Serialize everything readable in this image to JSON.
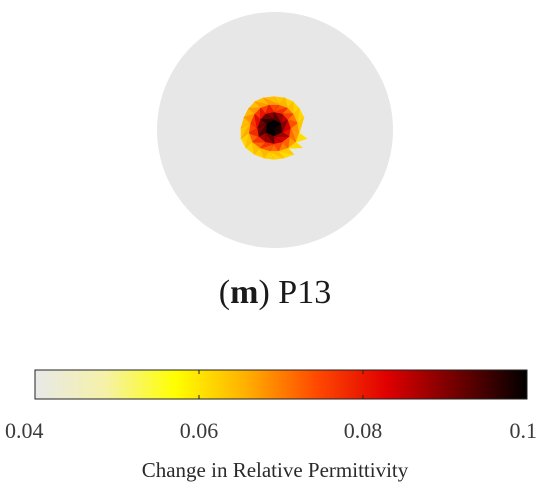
{
  "panel": {
    "letter": "m",
    "label": "P13"
  },
  "chart_data": {
    "type": "heatmap",
    "domain_shape": "circle",
    "background_value": 0.04,
    "anomaly": {
      "description": "single localized inclusion slightly left of and above the domain centre",
      "peak_value": 0.1
    },
    "colorbar": {
      "orientation": "horizontal",
      "range": [
        0.04,
        0.1
      ],
      "ticks": [
        0.04,
        0.06,
        0.08,
        0.1
      ],
      "tick_labels": [
        "0.04",
        "0.06",
        "0.08",
        "0.1"
      ],
      "label": "Change in Relative Permittivity",
      "colormap": "hot (reversed)",
      "stops": [
        "#e9e9e9",
        "#f5f1a8",
        "#ffff00",
        "#ffb000",
        "#ff4a00",
        "#e00000",
        "#700000",
        "#000000"
      ]
    }
  }
}
